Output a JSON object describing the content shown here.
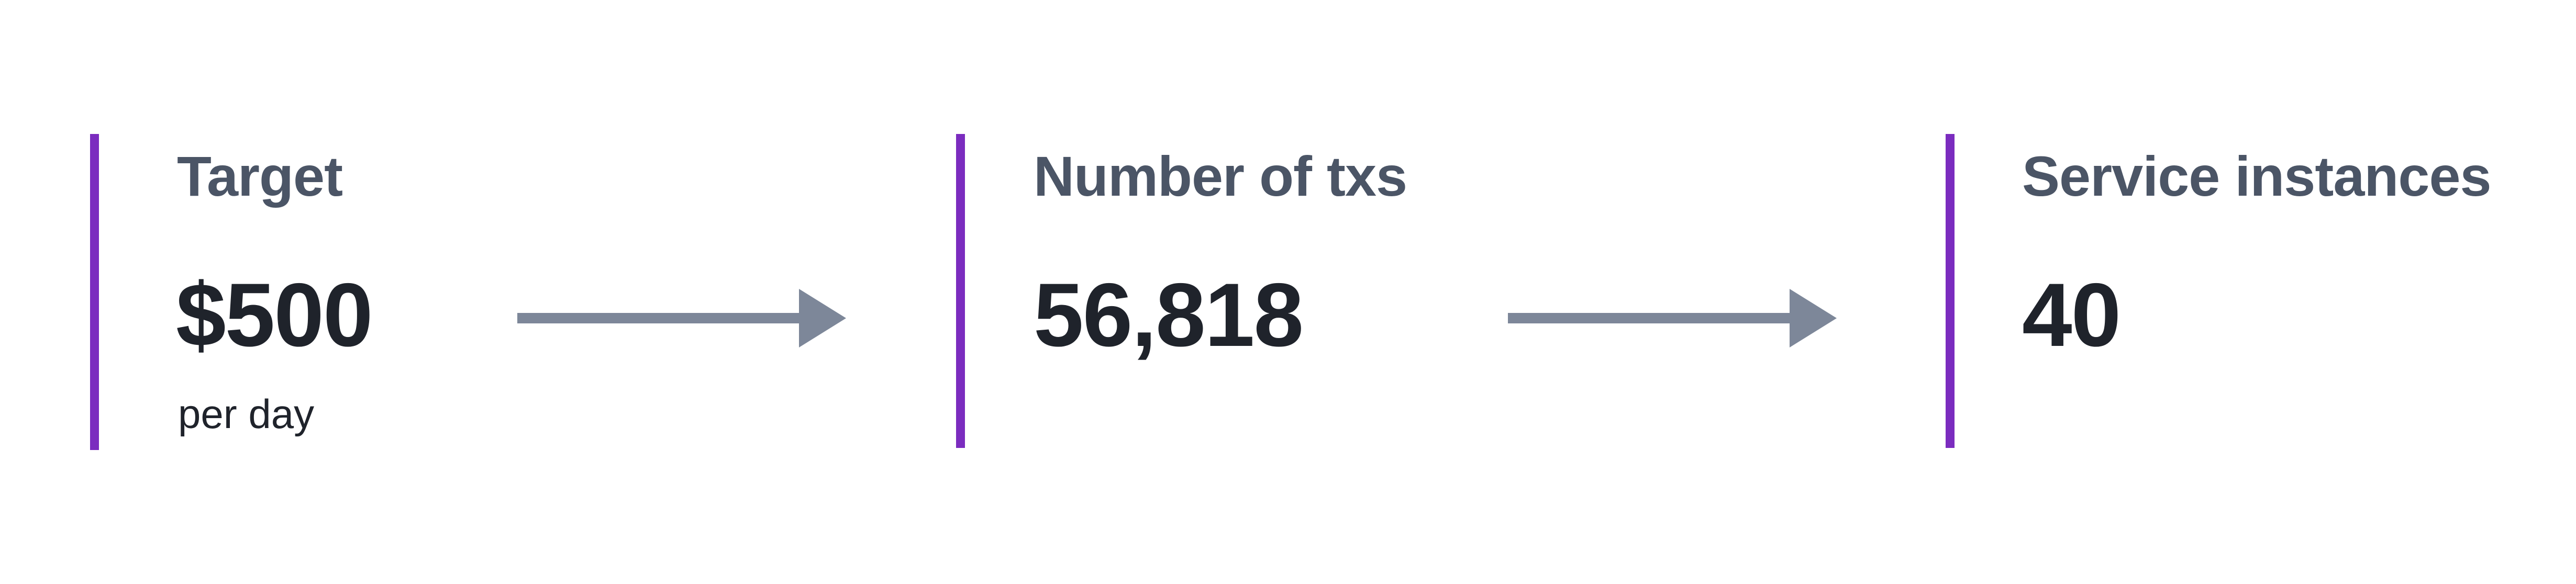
{
  "metrics": [
    {
      "label": "Target",
      "value": "$500",
      "sub": "per day"
    },
    {
      "label": "Number of txs",
      "value": "56,818"
    },
    {
      "label": "Service instances",
      "value": "40"
    }
  ],
  "colors": {
    "accent_bar": "#7b2cbf",
    "label_text": "#4b5566",
    "value_text": "#1f232b",
    "arrow": "#7d8799"
  },
  "icons": [
    "arrow-right-icon",
    "arrow-right-icon"
  ]
}
